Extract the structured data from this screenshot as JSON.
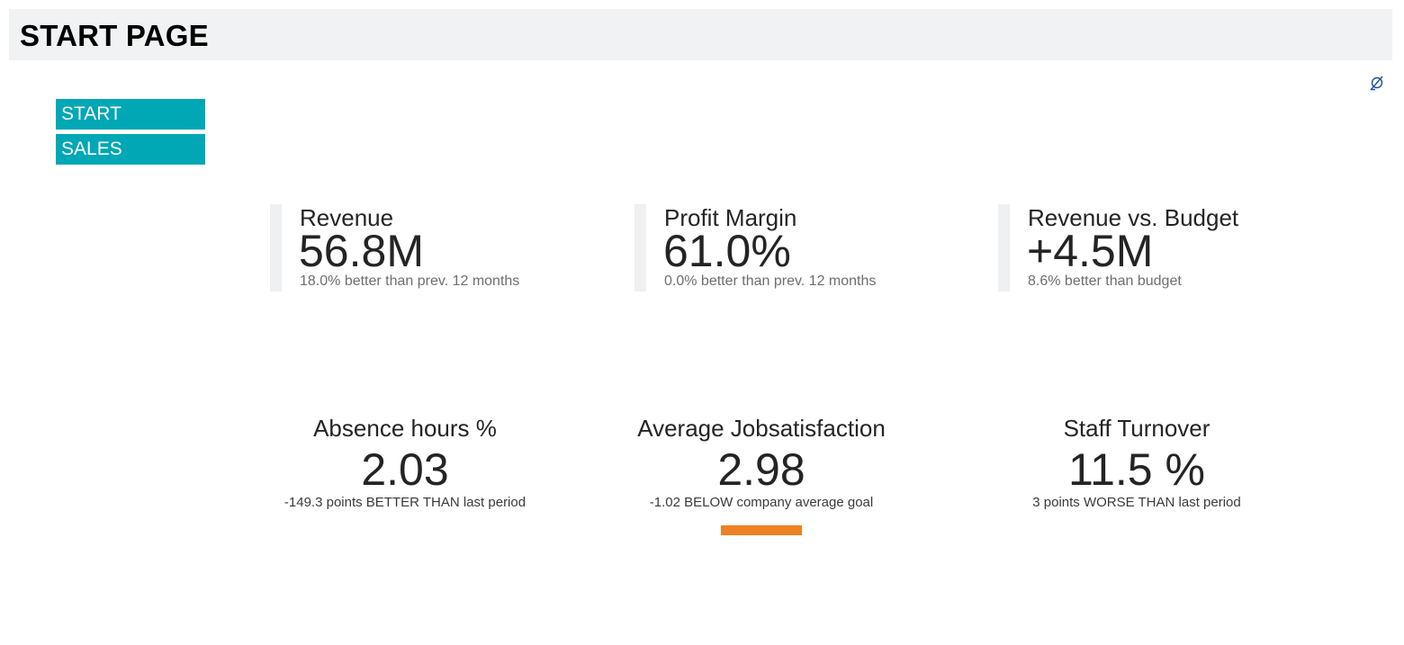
{
  "header": {
    "title": "START PAGE"
  },
  "toolbar": {
    "icon": "filter-clear-icon"
  },
  "nav": {
    "items": [
      {
        "label": "START"
      },
      {
        "label": "SALES"
      }
    ]
  },
  "kpis_top": [
    {
      "title": "Revenue",
      "value": "56.8M",
      "sub": "18.0% better than prev. 12 months"
    },
    {
      "title": "Profit Margin",
      "value": "61.0%",
      "sub": "0.0% better than prev. 12 months"
    },
    {
      "title": "Revenue vs. Budget",
      "value": "+4.5M",
      "sub": "8.6% better than budget"
    }
  ],
  "kpis_bottom": [
    {
      "title": "Absence hours %",
      "value": "2.03",
      "sub": "-149.3 points BETTER THAN last period"
    },
    {
      "title": "Average Jobsatisfaction",
      "value": "2.98",
      "sub": "-1.02 BELOW company average goal"
    },
    {
      "title": "Staff Turnover",
      "value": "11.5 %",
      "sub": "3 points WORSE THAN last period"
    }
  ],
  "colors": {
    "nav_bg": "#00a7b5",
    "header_bg": "#f0f2f3",
    "indicator": "#ee8123",
    "icon": "#1f4e9c"
  }
}
